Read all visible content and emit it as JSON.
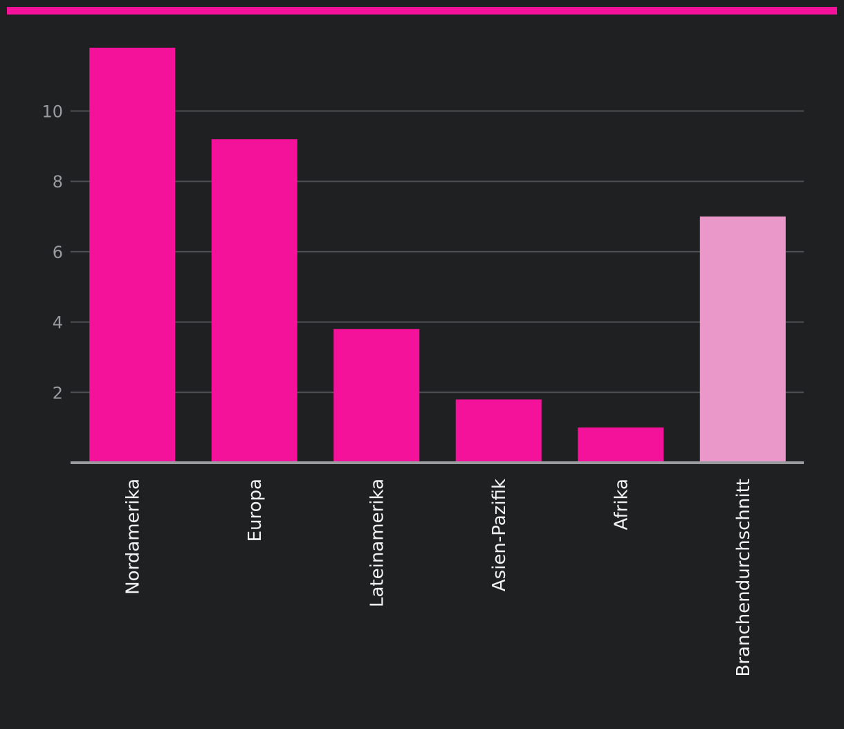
{
  "colors": {
    "background": "#1f2022",
    "accent": "#f5129a",
    "bar_primary": "#f5129a",
    "bar_highlight": "#ea98c9",
    "gridline": "#4e4f53",
    "axis": "#9a9b9f",
    "tick_text": "#9a9b9f",
    "label_text": "#f2f2f2"
  },
  "chart_data": {
    "type": "bar",
    "title": "",
    "xlabel": "",
    "ylabel": "",
    "categories": [
      "Nordamerika",
      "Europa",
      "Lateinamerika",
      "Asien-Pazifik",
      "Afrika",
      "Branchendurchschnitt"
    ],
    "values": [
      11.8,
      9.2,
      3.8,
      1.8,
      1.0,
      7.0
    ],
    "highlighted": [
      false,
      false,
      false,
      false,
      false,
      true
    ],
    "ylim": [
      0,
      12
    ],
    "yticks": [
      2,
      4,
      6,
      8,
      10
    ],
    "grid": true,
    "legend": "none"
  }
}
